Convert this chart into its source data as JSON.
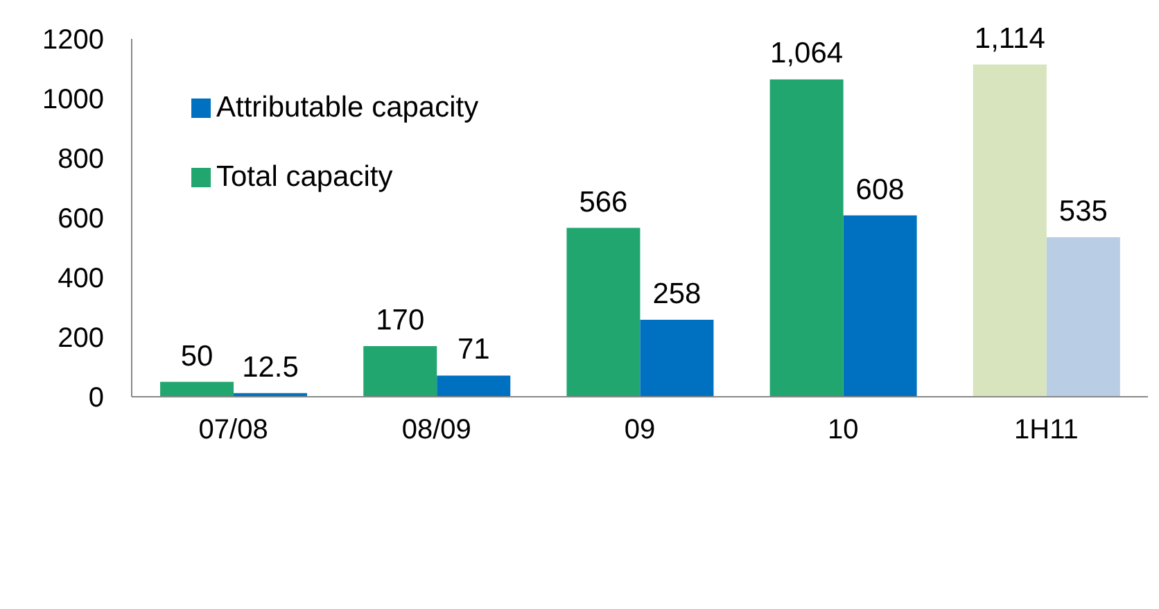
{
  "chart_data": {
    "type": "bar",
    "categories": [
      "07/08",
      "08/09",
      "09",
      "10",
      "1H11"
    ],
    "series": [
      {
        "name": "Total capacity",
        "color": "#21a66f",
        "colors": [
          "#21a66f",
          "#21a66f",
          "#21a66f",
          "#21a66f",
          "#d7e4bd"
        ],
        "values": [
          50,
          170,
          566,
          1064,
          1114
        ],
        "value_labels": [
          "50",
          "170",
          "566",
          "1,064",
          "1,114"
        ]
      },
      {
        "name": "Attributable capacity",
        "color": "#0070c0",
        "colors": [
          "#0070c0",
          "#0070c0",
          "#0070c0",
          "#0070c0",
          "#b9cde5"
        ],
        "values": [
          12.5,
          71,
          258,
          608,
          535
        ],
        "value_labels": [
          "12.5",
          "71",
          "258",
          "608",
          "535"
        ]
      }
    ],
    "ylim": [
      0,
      1200
    ],
    "yticks": [
      0,
      200,
      400,
      600,
      800,
      1000,
      1200
    ],
    "grid": false,
    "legend": "top left"
  }
}
